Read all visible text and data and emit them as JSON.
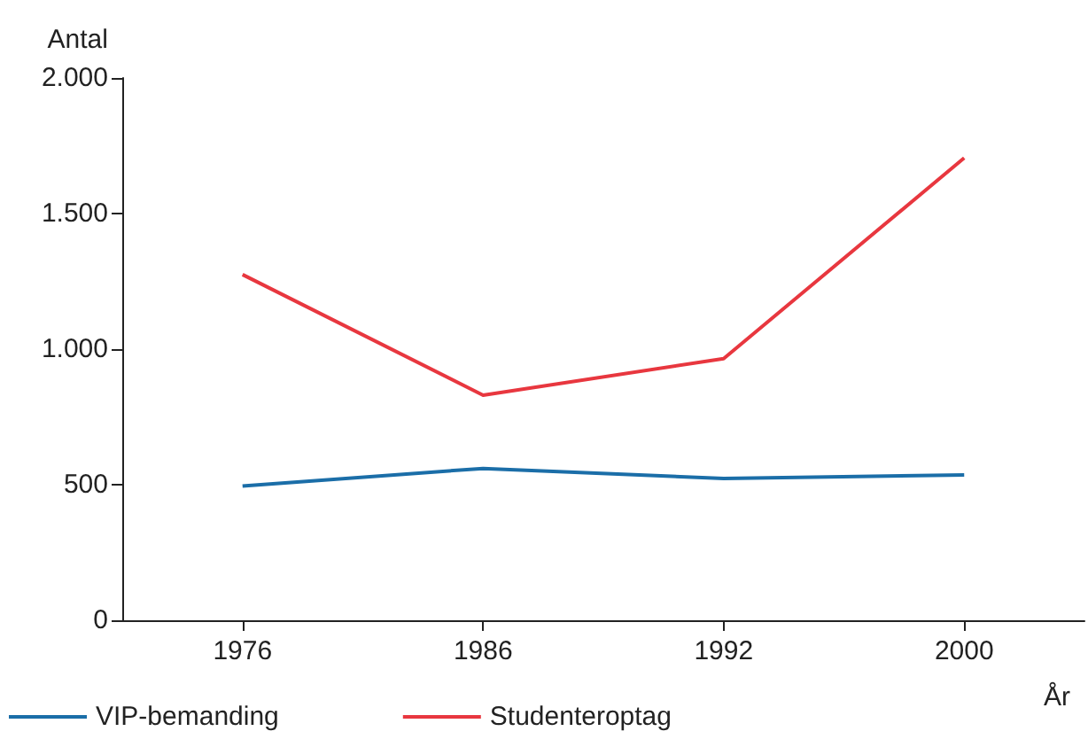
{
  "chart_data": {
    "type": "line",
    "ylabel": "Antal",
    "xlabel": "År",
    "categories": [
      "1976",
      "1986",
      "1992",
      "2000"
    ],
    "series": [
      {
        "name": "VIP-bemanding",
        "color": "#1b6ea8",
        "values": [
          495,
          560,
          523,
          536
        ]
      },
      {
        "name": "Studenteroptag",
        "color": "#e8373f",
        "values": [
          1275,
          830,
          965,
          1705
        ]
      }
    ],
    "ylim": [
      0,
      2000
    ],
    "yticks": [
      0,
      500,
      {
        "value": 1000,
        "label": "1.000"
      },
      {
        "value": 1500,
        "label": "1.500"
      },
      {
        "value": 2000,
        "label": "2.000"
      }
    ],
    "grid": false,
    "legend": "bottom left",
    "marker": "none",
    "line_style": "solid"
  }
}
